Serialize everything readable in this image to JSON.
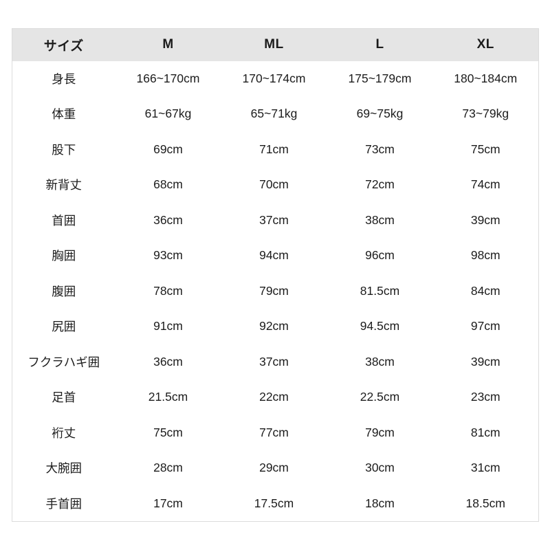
{
  "chart_data": {
    "type": "table",
    "title": "size-chart",
    "columns": [
      "サイズ",
      "M",
      "ML",
      "L",
      "XL"
    ],
    "rows": [
      {
        "label": "身長",
        "values": [
          "166~170cm",
          "170~174cm",
          "175~179cm",
          "180~184cm"
        ]
      },
      {
        "label": "体重",
        "values": [
          "61~67kg",
          "65~71kg",
          "69~75kg",
          "73~79kg"
        ]
      },
      {
        "label": "股下",
        "values": [
          "69cm",
          "71cm",
          "73cm",
          "75cm"
        ]
      },
      {
        "label": "新背丈",
        "values": [
          "68cm",
          "70cm",
          "72cm",
          "74cm"
        ]
      },
      {
        "label": "首囲",
        "values": [
          "36cm",
          "37cm",
          "38cm",
          "39cm"
        ]
      },
      {
        "label": "胸囲",
        "values": [
          "93cm",
          "94cm",
          "96cm",
          "98cm"
        ]
      },
      {
        "label": "腹囲",
        "values": [
          "78cm",
          "79cm",
          "81.5cm",
          "84cm"
        ]
      },
      {
        "label": "尻囲",
        "values": [
          "91cm",
          "92cm",
          "94.5cm",
          "97cm"
        ]
      },
      {
        "label": "フクラハギ囲",
        "values": [
          "36cm",
          "37cm",
          "38cm",
          "39cm"
        ]
      },
      {
        "label": "足首",
        "values": [
          "21.5cm",
          "22cm",
          "22.5cm",
          "23cm"
        ]
      },
      {
        "label": "裄丈",
        "values": [
          "75cm",
          "77cm",
          "79cm",
          "81cm"
        ]
      },
      {
        "label": "大腕囲",
        "values": [
          "28cm",
          "29cm",
          "30cm",
          "31cm"
        ]
      },
      {
        "label": "手首囲",
        "values": [
          "17cm",
          "17.5cm",
          "18cm",
          "18.5cm"
        ]
      }
    ],
    "layout": {
      "header_position": "top",
      "grid": "none"
    }
  },
  "colors": {
    "header_bg": "#e5e5e5",
    "border": "#dcdcdc",
    "text": "#1c1c1c"
  }
}
